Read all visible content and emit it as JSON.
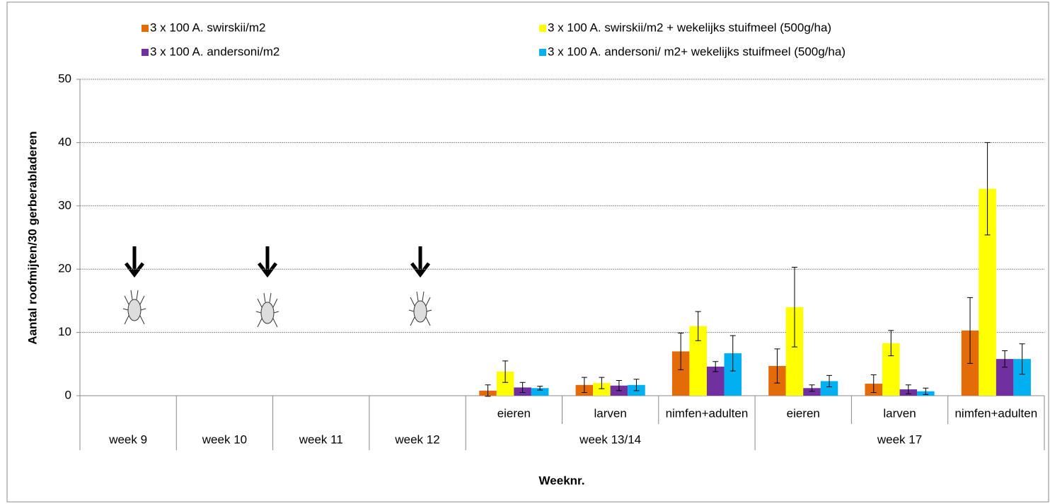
{
  "chart_data": {
    "type": "bar",
    "y_label": "Aantal roofmijten/30 gerberabladeren",
    "x_label": "Weeknr.",
    "categories": [
      null,
      null,
      null,
      null,
      "eieren",
      "larven",
      "nimfen+adulten",
      "eieren",
      "larven",
      "nimfen+adulten"
    ],
    "groups": [
      {
        "label": "week 9",
        "span": 1
      },
      {
        "label": "week 10",
        "span": 1
      },
      {
        "label": "week 11",
        "span": 1
      },
      {
        "label": "week 12",
        "span": 1
      },
      {
        "label": "week 13/14",
        "span": 3
      },
      {
        "label": "week 17",
        "span": 3
      }
    ],
    "series": [
      {
        "name": "3 x 100 A. swirskii/m2",
        "color": "#e36c09",
        "values": [
          null,
          null,
          null,
          null,
          0.8,
          1.7,
          7.0,
          4.7,
          1.9,
          10.3
        ],
        "errors": [
          null,
          null,
          null,
          null,
          0.9,
          1.2,
          2.9,
          2.7,
          1.4,
          5.2
        ]
      },
      {
        "name": "3 x 100 A. swirskii/m2 + wekelijks stuifmeel (500g/ha)",
        "color": "#ffff00",
        "values": [
          null,
          null,
          null,
          null,
          3.8,
          2.0,
          11.0,
          14.0,
          8.3,
          32.7
        ],
        "errors": [
          null,
          null,
          null,
          null,
          1.7,
          0.9,
          2.3,
          6.3,
          2.0,
          7.3
        ]
      },
      {
        "name": "3 x 100 A. andersoni/m2",
        "color": "#7030a0",
        "values": [
          null,
          null,
          null,
          null,
          1.3,
          1.6,
          4.6,
          1.2,
          1.0,
          5.8
        ],
        "errors": [
          null,
          null,
          null,
          null,
          0.8,
          0.8,
          0.8,
          0.5,
          0.7,
          1.3
        ]
      },
      {
        "name": "3 x 100 A. andersoni/ m2+ wekelijks stuifmeel (500g/ha)",
        "color": "#00b0f0",
        "values": [
          null,
          null,
          null,
          null,
          1.2,
          1.7,
          6.7,
          2.3,
          0.7,
          5.8
        ],
        "errors": [
          null,
          null,
          null,
          null,
          0.3,
          0.9,
          2.8,
          0.9,
          0.5,
          2.4
        ]
      }
    ],
    "ylim": [
      0,
      50
    ],
    "yticks": [
      0,
      10,
      20,
      30,
      40,
      50
    ],
    "grid": true,
    "legend": "top"
  }
}
